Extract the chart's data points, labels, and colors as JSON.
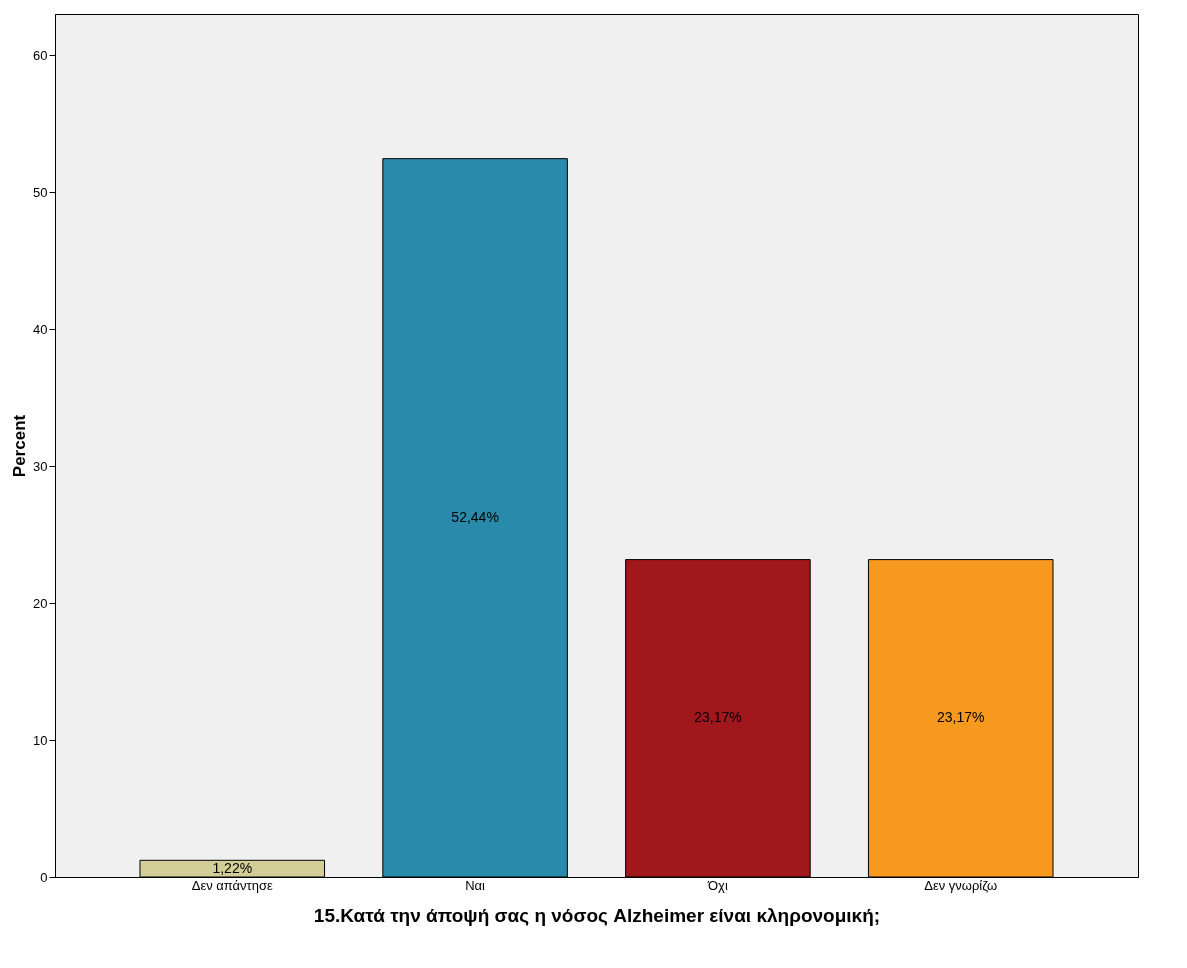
{
  "chart_data": {
    "type": "bar",
    "xlabel": "15.Κατά την άποψή σας η νόσος Alzheimer είναι κληρονομική;",
    "ylabel": "Percent",
    "categories": [
      "Δεν απάντησε",
      "Ναι",
      "Όχι",
      "Δεν γνωρίζω"
    ],
    "values": [
      1.22,
      52.44,
      23.17,
      23.17
    ],
    "colors": [
      "#d3ce97",
      "#2a8aab",
      "#a0171c",
      "#f7991f"
    ],
    "value_labels": [
      "1,22%",
      "52,44%",
      "23,17%",
      "23,17%"
    ],
    "ylim": [
      0,
      63
    ],
    "yticks": [
      0,
      10,
      20,
      30,
      40,
      50,
      60
    ],
    "grid": false
  }
}
